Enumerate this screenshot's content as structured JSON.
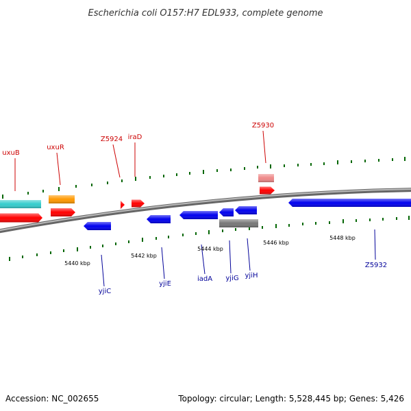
{
  "title": "Escherichia coli O157:H7 EDL933, complete genome",
  "footer": {
    "accession": "Accession: NC_002655",
    "summary": "Topology: circular; Length: 5,528,445 bp; Genes: 5,426"
  },
  "colors": {
    "forward_label": "#cc0000",
    "reverse_label": "#000099",
    "tick_mark": "#006600",
    "backbone": "#888888"
  },
  "scale": {
    "labels": [
      {
        "text": "5440 kbp"
      },
      {
        "text": "5442 kbp"
      },
      {
        "text": "5444 kbp"
      },
      {
        "text": "5446 kbp"
      },
      {
        "text": "5448 kbp"
      }
    ]
  },
  "forward_labels": [
    {
      "name": "uxuB"
    },
    {
      "name": "uxuR"
    },
    {
      "name": "Z5924"
    },
    {
      "name": "iraD"
    },
    {
      "name": "Z5930"
    }
  ],
  "reverse_labels": [
    {
      "name": "yjiC"
    },
    {
      "name": "yjiE"
    },
    {
      "name": "iadA"
    },
    {
      "name": "yjiG"
    },
    {
      "name": "yjiH"
    },
    {
      "name": "Z5932"
    }
  ],
  "features": [
    {
      "type": "cds",
      "strand": "+",
      "color": "#33cccc"
    },
    {
      "type": "cds",
      "strand": "+",
      "color": "#ff9900"
    },
    {
      "type": "cds",
      "strand": "+",
      "color": "#ff0000"
    },
    {
      "type": "cds",
      "strand": "+",
      "color": "#ff0000"
    },
    {
      "type": "cds",
      "strand": "+",
      "color": "#ff0000"
    },
    {
      "type": "cds",
      "strand": "+",
      "color": "#ff0000"
    },
    {
      "type": "cds",
      "strand": "+",
      "color": "#ff0000"
    },
    {
      "type": "cds",
      "strand": "+",
      "color": "#ee8888"
    },
    {
      "type": "cds",
      "strand": "-",
      "color": "#0000ee"
    },
    {
      "type": "cds",
      "strand": "-",
      "color": "#0000ee"
    },
    {
      "type": "cds",
      "strand": "-",
      "color": "#0000ee"
    },
    {
      "type": "cds",
      "strand": "-",
      "color": "#0000ee"
    },
    {
      "type": "cds",
      "strand": "-",
      "color": "#0000ee"
    },
    {
      "type": "cds",
      "strand": "-",
      "color": "#0000ee"
    },
    {
      "type": "cds",
      "strand": "-",
      "color": "#777777"
    }
  ]
}
